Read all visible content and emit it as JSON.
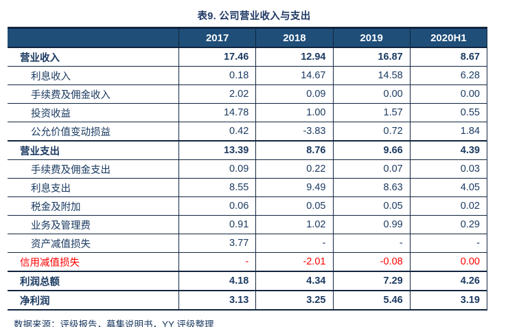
{
  "title": "表9. 公司营业收入与支出",
  "source_note": "数据来源：评级报告，募集说明书，YY 评级整理",
  "colors": {
    "title_text": "#1F3864",
    "header_bg": "#1F4E79",
    "header_text": "#FFFFFF",
    "body_text": "#1B3A61",
    "alert_text": "#FF0000",
    "border": "#10243E"
  },
  "chart_data": {
    "type": "table",
    "title": "表9. 公司营业收入与支出",
    "columns": [
      "",
      "2017",
      "2018",
      "2019",
      "2020H1"
    ],
    "rows": [
      {
        "label": "营业收入",
        "values": [
          "17.46",
          "12.94",
          "16.87",
          "8.67"
        ],
        "style": "section"
      },
      {
        "label": "利息收入",
        "values": [
          "0.18",
          "14.67",
          "14.58",
          "6.28"
        ],
        "style": "item"
      },
      {
        "label": "手续费及佣金收入",
        "values": [
          "2.02",
          "0.09",
          "0.00",
          "0.00"
        ],
        "style": "item"
      },
      {
        "label": "投资收益",
        "values": [
          "14.78",
          "1.00",
          "1.57",
          "0.55"
        ],
        "style": "item"
      },
      {
        "label": "公允价值变动损益",
        "values": [
          "0.42",
          "-3.83",
          "0.72",
          "1.84"
        ],
        "style": "item"
      },
      {
        "label": "营业支出",
        "values": [
          "13.39",
          "8.76",
          "9.66",
          "4.39"
        ],
        "style": "section"
      },
      {
        "label": "手续费及佣金支出",
        "values": [
          "0.09",
          "0.22",
          "0.07",
          "0.03"
        ],
        "style": "item"
      },
      {
        "label": "利息支出",
        "values": [
          "8.55",
          "9.49",
          "8.63",
          "4.05"
        ],
        "style": "item"
      },
      {
        "label": "税金及附加",
        "values": [
          "0.06",
          "0.05",
          "0.05",
          "0.02"
        ],
        "style": "item"
      },
      {
        "label": "业务及管理费",
        "values": [
          "0.91",
          "1.02",
          "0.99",
          "0.29"
        ],
        "style": "item"
      },
      {
        "label": "资产减值损失",
        "values": [
          "3.77",
          "-",
          "-",
          "-"
        ],
        "style": "item"
      },
      {
        "label": "信用减值损失",
        "values": [
          "-",
          "-2.01",
          "-0.08",
          "0.00"
        ],
        "style": "item-alert"
      },
      {
        "label": "利润总额",
        "values": [
          "4.18",
          "4.34",
          "7.29",
          "4.26"
        ],
        "style": "section"
      },
      {
        "label": "净利润",
        "values": [
          "3.13",
          "3.25",
          "5.46",
          "3.19"
        ],
        "style": "section"
      }
    ]
  }
}
